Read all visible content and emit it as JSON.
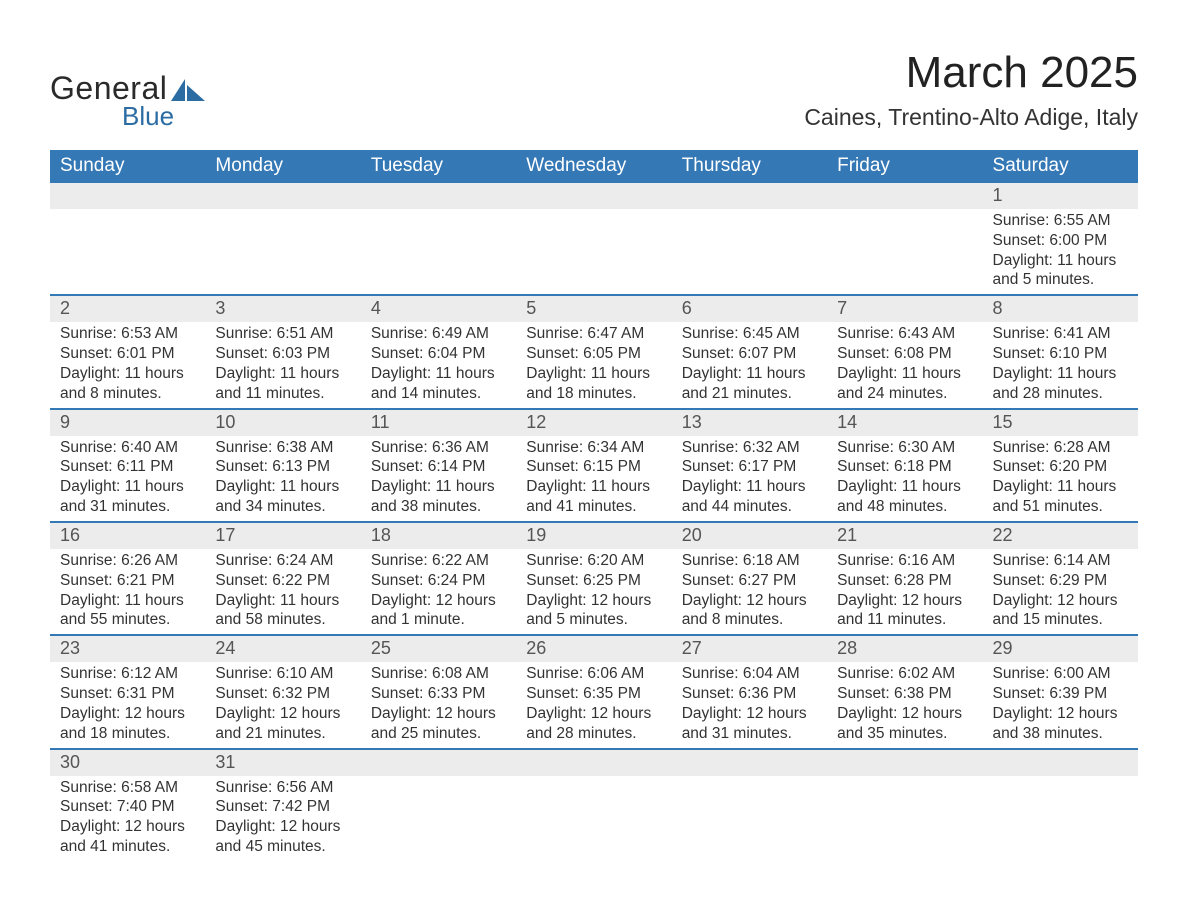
{
  "logo": {
    "text1": "General",
    "text2": "Blue",
    "shape_color": "#2b6ca3"
  },
  "title": "March 2025",
  "location": "Caines, Trentino-Alto Adige, Italy",
  "colors": {
    "header_bg": "#3478b5",
    "header_text": "#ffffff",
    "daynum_bg": "#ececec",
    "row_border": "#3478b5",
    "text": "#333333"
  },
  "day_headers": [
    "Sunday",
    "Monday",
    "Tuesday",
    "Wednesday",
    "Thursday",
    "Friday",
    "Saturday"
  ],
  "weeks": [
    [
      null,
      null,
      null,
      null,
      null,
      null,
      {
        "n": "1",
        "sr": "6:55 AM",
        "ss": "6:00 PM",
        "dl": "11 hours and 5 minutes."
      }
    ],
    [
      {
        "n": "2",
        "sr": "6:53 AM",
        "ss": "6:01 PM",
        "dl": "11 hours and 8 minutes."
      },
      {
        "n": "3",
        "sr": "6:51 AM",
        "ss": "6:03 PM",
        "dl": "11 hours and 11 minutes."
      },
      {
        "n": "4",
        "sr": "6:49 AM",
        "ss": "6:04 PM",
        "dl": "11 hours and 14 minutes."
      },
      {
        "n": "5",
        "sr": "6:47 AM",
        "ss": "6:05 PM",
        "dl": "11 hours and 18 minutes."
      },
      {
        "n": "6",
        "sr": "6:45 AM",
        "ss": "6:07 PM",
        "dl": "11 hours and 21 minutes."
      },
      {
        "n": "7",
        "sr": "6:43 AM",
        "ss": "6:08 PM",
        "dl": "11 hours and 24 minutes."
      },
      {
        "n": "8",
        "sr": "6:41 AM",
        "ss": "6:10 PM",
        "dl": "11 hours and 28 minutes."
      }
    ],
    [
      {
        "n": "9",
        "sr": "6:40 AM",
        "ss": "6:11 PM",
        "dl": "11 hours and 31 minutes."
      },
      {
        "n": "10",
        "sr": "6:38 AM",
        "ss": "6:13 PM",
        "dl": "11 hours and 34 minutes."
      },
      {
        "n": "11",
        "sr": "6:36 AM",
        "ss": "6:14 PM",
        "dl": "11 hours and 38 minutes."
      },
      {
        "n": "12",
        "sr": "6:34 AM",
        "ss": "6:15 PM",
        "dl": "11 hours and 41 minutes."
      },
      {
        "n": "13",
        "sr": "6:32 AM",
        "ss": "6:17 PM",
        "dl": "11 hours and 44 minutes."
      },
      {
        "n": "14",
        "sr": "6:30 AM",
        "ss": "6:18 PM",
        "dl": "11 hours and 48 minutes."
      },
      {
        "n": "15",
        "sr": "6:28 AM",
        "ss": "6:20 PM",
        "dl": "11 hours and 51 minutes."
      }
    ],
    [
      {
        "n": "16",
        "sr": "6:26 AM",
        "ss": "6:21 PM",
        "dl": "11 hours and 55 minutes."
      },
      {
        "n": "17",
        "sr": "6:24 AM",
        "ss": "6:22 PM",
        "dl": "11 hours and 58 minutes."
      },
      {
        "n": "18",
        "sr": "6:22 AM",
        "ss": "6:24 PM",
        "dl": "12 hours and 1 minute."
      },
      {
        "n": "19",
        "sr": "6:20 AM",
        "ss": "6:25 PM",
        "dl": "12 hours and 5 minutes."
      },
      {
        "n": "20",
        "sr": "6:18 AM",
        "ss": "6:27 PM",
        "dl": "12 hours and 8 minutes."
      },
      {
        "n": "21",
        "sr": "6:16 AM",
        "ss": "6:28 PM",
        "dl": "12 hours and 11 minutes."
      },
      {
        "n": "22",
        "sr": "6:14 AM",
        "ss": "6:29 PM",
        "dl": "12 hours and 15 minutes."
      }
    ],
    [
      {
        "n": "23",
        "sr": "6:12 AM",
        "ss": "6:31 PM",
        "dl": "12 hours and 18 minutes."
      },
      {
        "n": "24",
        "sr": "6:10 AM",
        "ss": "6:32 PM",
        "dl": "12 hours and 21 minutes."
      },
      {
        "n": "25",
        "sr": "6:08 AM",
        "ss": "6:33 PM",
        "dl": "12 hours and 25 minutes."
      },
      {
        "n": "26",
        "sr": "6:06 AM",
        "ss": "6:35 PM",
        "dl": "12 hours and 28 minutes."
      },
      {
        "n": "27",
        "sr": "6:04 AM",
        "ss": "6:36 PM",
        "dl": "12 hours and 31 minutes."
      },
      {
        "n": "28",
        "sr": "6:02 AM",
        "ss": "6:38 PM",
        "dl": "12 hours and 35 minutes."
      },
      {
        "n": "29",
        "sr": "6:00 AM",
        "ss": "6:39 PM",
        "dl": "12 hours and 38 minutes."
      }
    ],
    [
      {
        "n": "30",
        "sr": "6:58 AM",
        "ss": "7:40 PM",
        "dl": "12 hours and 41 minutes."
      },
      {
        "n": "31",
        "sr": "6:56 AM",
        "ss": "7:42 PM",
        "dl": "12 hours and 45 minutes."
      },
      null,
      null,
      null,
      null,
      null
    ]
  ],
  "labels": {
    "sunrise": "Sunrise: ",
    "sunset": "Sunset: ",
    "daylight": "Daylight: "
  }
}
